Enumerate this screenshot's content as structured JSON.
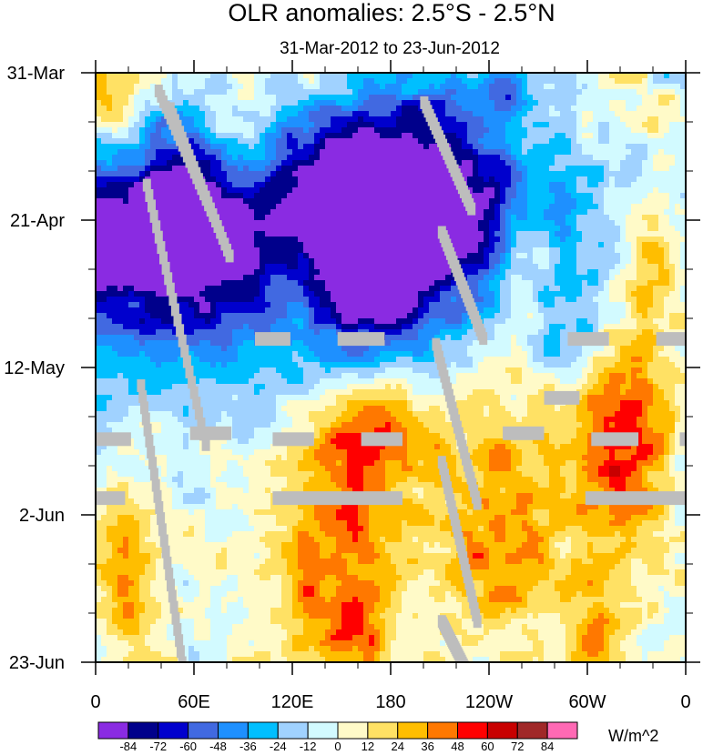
{
  "chart_data": {
    "type": "heatmap",
    "title": "OLR anomalies: 2.5°S - 2.5°N",
    "subtitle": "31-Mar-2012 to 23-Jun-2012",
    "x_tick_labels": [
      "0",
      "60E",
      "120E",
      "180",
      "120W",
      "60W",
      "0"
    ],
    "x_tick_values_deg_east": [
      0,
      60,
      120,
      180,
      240,
      300,
      360
    ],
    "xlim": [
      0,
      360
    ],
    "y_tick_labels": [
      "31-Mar",
      "21-Apr",
      "12-May",
      "2-Jun",
      "23-Jun"
    ],
    "y_tick_values_day": [
      0,
      21,
      42,
      63,
      84
    ],
    "ylim": [
      0,
      84
    ],
    "colorbar": {
      "labels": [
        "-84",
        "-72",
        "-60",
        "-48",
        "-36",
        "-24",
        "-12",
        "0",
        "12",
        "24",
        "36",
        "48",
        "60",
        "72",
        "84"
      ],
      "colors": [
        "#8a2be2",
        "#00008b",
        "#0000cd",
        "#4169e1",
        "#1e90ff",
        "#00bfff",
        "#a0d2ff",
        "#d2faff",
        "#fffac8",
        "#ffe164",
        "#ffbe00",
        "#ff7800",
        "#ff0000",
        "#c80000",
        "#a02828",
        "#ff69b4"
      ],
      "units": "W/m^2"
    },
    "missing_color": "#bdbdbd"
  }
}
